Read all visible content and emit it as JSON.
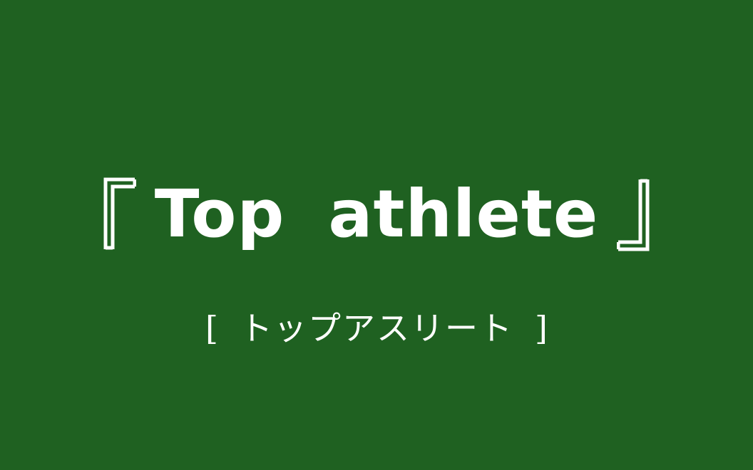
{
  "background_color": "#1f6121",
  "text_color": "#ffffff",
  "title": {
    "open_bracket_icon": "white-corner-bracket-open",
    "text": "Top  athlete",
    "close_bracket_icon": "white-corner-bracket-close"
  },
  "subtitle": {
    "open_bracket": "[",
    "text": "トップアスリート",
    "close_bracket": "]"
  }
}
